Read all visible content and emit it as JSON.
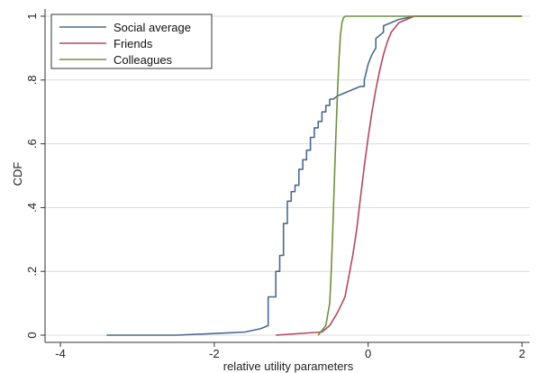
{
  "chart_data": {
    "type": "line",
    "xlabel": "relative utility parameters",
    "ylabel": "CDF",
    "xlim": [
      -4.2,
      2.1
    ],
    "ylim": [
      0,
      1.0
    ],
    "x_ticks": [
      -4,
      -2,
      0,
      2
    ],
    "x_tick_labels": [
      "-4",
      "-2",
      "0",
      "2"
    ],
    "y_ticks": [
      0,
      0.2,
      0.4,
      0.6,
      0.8,
      1
    ],
    "y_tick_labels": [
      "0",
      ".2",
      ".4",
      ".6",
      ".8",
      "1"
    ],
    "grid": true,
    "legend_position": "top-left",
    "series": [
      {
        "name": "Social average",
        "color": "#4a6a8f",
        "x": [
          -3.4,
          -2.5,
          -2.0,
          -1.6,
          -1.4,
          -1.3,
          -1.3,
          -1.2,
          -1.2,
          -1.15,
          -1.15,
          -1.1,
          -1.1,
          -1.05,
          -1.05,
          -1.0,
          -1.0,
          -0.95,
          -0.95,
          -0.9,
          -0.9,
          -0.85,
          -0.85,
          -0.8,
          -0.8,
          -0.75,
          -0.75,
          -0.7,
          -0.7,
          -0.65,
          -0.65,
          -0.6,
          -0.6,
          -0.55,
          -0.55,
          -0.5,
          -0.5,
          -0.45,
          -0.45,
          -0.4,
          -0.3,
          -0.2,
          -0.1,
          -0.05,
          -0.05,
          0.0,
          0.05,
          0.1,
          0.1,
          0.2,
          0.2,
          0.3,
          0.4,
          0.6,
          0.8,
          1.0,
          2.0
        ],
        "y": [
          0.0,
          0.0,
          0.005,
          0.01,
          0.02,
          0.03,
          0.12,
          0.12,
          0.2,
          0.2,
          0.25,
          0.25,
          0.35,
          0.35,
          0.42,
          0.42,
          0.45,
          0.45,
          0.47,
          0.47,
          0.52,
          0.52,
          0.55,
          0.55,
          0.58,
          0.58,
          0.62,
          0.62,
          0.65,
          0.65,
          0.67,
          0.67,
          0.7,
          0.7,
          0.72,
          0.72,
          0.74,
          0.74,
          0.74,
          0.75,
          0.76,
          0.77,
          0.78,
          0.78,
          0.8,
          0.85,
          0.88,
          0.9,
          0.93,
          0.95,
          0.97,
          0.98,
          0.99,
          1.0,
          1.0,
          1.0,
          1.0
        ]
      },
      {
        "name": "Friends",
        "color": "#b04a5f",
        "x": [
          -1.2,
          -0.6,
          -0.5,
          -0.4,
          -0.3,
          -0.2,
          -0.15,
          -0.1,
          -0.05,
          0.0,
          0.05,
          0.1,
          0.15,
          0.2,
          0.25,
          0.3,
          0.4,
          0.5,
          0.6,
          0.8,
          1.0,
          2.0
        ],
        "y": [
          0.0,
          0.01,
          0.03,
          0.07,
          0.12,
          0.25,
          0.33,
          0.43,
          0.53,
          0.62,
          0.7,
          0.77,
          0.83,
          0.88,
          0.92,
          0.95,
          0.98,
          0.99,
          1.0,
          1.0,
          1.0,
          1.0
        ]
      },
      {
        "name": "Colleagues",
        "color": "#6f8f3f",
        "x": [
          -0.65,
          -0.55,
          -0.5,
          -0.48,
          -0.46,
          -0.44,
          -0.42,
          -0.4,
          -0.38,
          -0.36,
          -0.34,
          -0.32,
          -0.3,
          -0.2,
          2.0
        ],
        "y": [
          0.0,
          0.03,
          0.1,
          0.2,
          0.33,
          0.48,
          0.62,
          0.75,
          0.86,
          0.94,
          0.98,
          0.995,
          1.0,
          1.0,
          1.0
        ]
      }
    ]
  }
}
